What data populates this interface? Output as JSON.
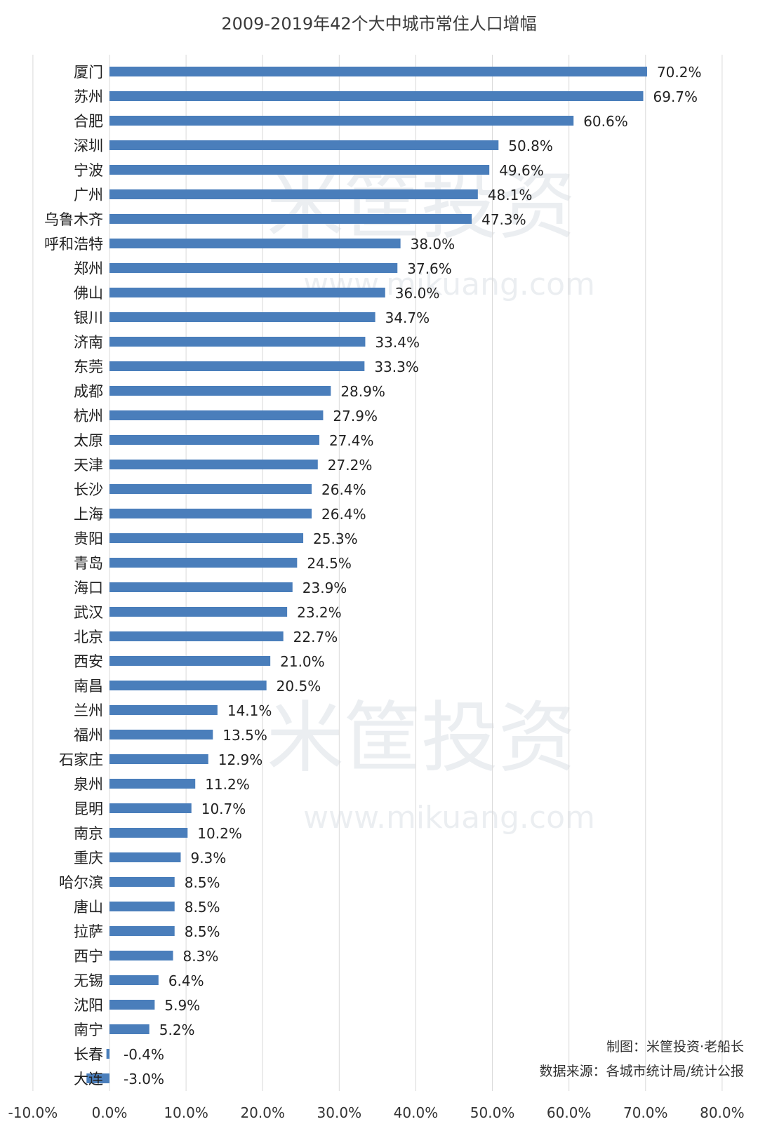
{
  "chart_data": {
    "type": "bar",
    "orientation": "horizontal",
    "title": "2009-2019年42个大中城市常住人口增幅",
    "categories": [
      "厦门",
      "苏州",
      "合肥",
      "深圳",
      "宁波",
      "广州",
      "乌鲁木齐",
      "呼和浩特",
      "郑州",
      "佛山",
      "银川",
      "济南",
      "东莞",
      "成都",
      "杭州",
      "太原",
      "天津",
      "长沙",
      "上海",
      "贵阳",
      "青岛",
      "海口",
      "武汉",
      "北京",
      "西安",
      "南昌",
      "兰州",
      "福州",
      "石家庄",
      "泉州",
      "昆明",
      "南京",
      "重庆",
      "哈尔滨",
      "唐山",
      "拉萨",
      "西宁",
      "无锡",
      "沈阳",
      "南宁",
      "长春",
      "大连"
    ],
    "values": [
      70.2,
      69.7,
      60.6,
      50.8,
      49.6,
      48.1,
      47.3,
      38.0,
      37.6,
      36.0,
      34.7,
      33.4,
      33.3,
      28.9,
      27.9,
      27.4,
      27.2,
      26.4,
      26.4,
      25.3,
      24.5,
      23.9,
      23.2,
      22.7,
      21.0,
      20.5,
      14.1,
      13.5,
      12.9,
      11.2,
      10.7,
      10.2,
      9.3,
      8.5,
      8.5,
      8.5,
      8.3,
      6.4,
      5.9,
      5.2,
      -0.4,
      -3.0
    ],
    "value_labels": [
      "70.2%",
      "69.7%",
      "60.6%",
      "50.8%",
      "49.6%",
      "48.1%",
      "47.3%",
      "38.0%",
      "37.6%",
      "36.0%",
      "34.7%",
      "33.4%",
      "33.3%",
      "28.9%",
      "27.9%",
      "27.4%",
      "27.2%",
      "26.4%",
      "26.4%",
      "25.3%",
      "24.5%",
      "23.9%",
      "23.2%",
      "22.7%",
      "21.0%",
      "20.5%",
      "14.1%",
      "13.5%",
      "12.9%",
      "11.2%",
      "10.7%",
      "10.2%",
      "9.3%",
      "8.5%",
      "8.5%",
      "8.5%",
      "8.3%",
      "6.4%",
      "5.9%",
      "5.2%",
      "-0.4%",
      "-3.0%"
    ],
    "xlim": [
      -10,
      80
    ],
    "x_ticks": [
      -10,
      0,
      10,
      20,
      30,
      40,
      50,
      60,
      70,
      80
    ],
    "x_tick_labels": [
      "-10.0%",
      "0.0%",
      "10.0%",
      "20.0%",
      "30.0%",
      "40.0%",
      "50.0%",
      "60.0%",
      "70.0%",
      "80.0%"
    ],
    "grid": true,
    "bar_color": "#4a7ebb",
    "annotations": [
      "制图：米筐投资·老船长",
      "数据来源：各城市统计局/统计公报"
    ],
    "watermark": [
      "米筐投资",
      "www.mikuang.com"
    ]
  }
}
